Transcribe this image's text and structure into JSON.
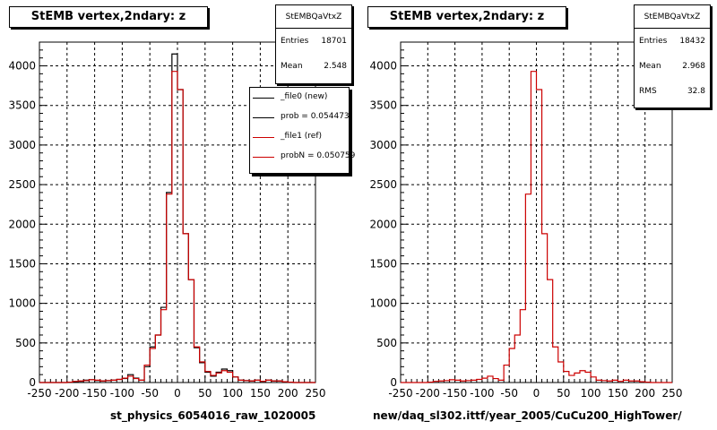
{
  "colors": {
    "file0": "#000000",
    "file1": "#cc0000",
    "grid": "#000000"
  },
  "chart_data": [
    {
      "type": "line",
      "title": "StEMB  vertex,2ndary: z",
      "xlabel": "st_physics_6054016_raw_1020005",
      "ylabel": "",
      "xlim": [
        -250,
        250
      ],
      "ylim": [
        0,
        4300
      ],
      "xticks": [
        -250,
        -200,
        -150,
        -100,
        -50,
        0,
        50,
        100,
        150,
        200,
        250
      ],
      "yticks": [
        0,
        500,
        1000,
        1500,
        2000,
        2500,
        3000,
        3500,
        4000
      ],
      "grid": true,
      "legend_position": "top-right",
      "stats": {
        "name": "StEMBQaVtxZ",
        "rows": [
          {
            "label": "Entries",
            "value": "18701"
          },
          {
            "label": "Mean",
            "value": "2.548"
          }
        ]
      },
      "legend": [
        {
          "label": "_file0 (new)",
          "color": "#000000"
        },
        {
          "label": "prob = 0.054473",
          "color": "#000000"
        },
        {
          "label": "_file1 (ref)",
          "color": "#cc0000"
        },
        {
          "label": "probN = 0.050759",
          "color": "#cc0000"
        }
      ],
      "bin_edges": [
        -250,
        -240,
        -230,
        -220,
        -210,
        -200,
        -190,
        -180,
        -170,
        -160,
        -150,
        -140,
        -130,
        -120,
        -110,
        -100,
        -90,
        -80,
        -70,
        -60,
        -50,
        -40,
        -30,
        -20,
        -10,
        0,
        10,
        20,
        30,
        40,
        50,
        60,
        70,
        80,
        90,
        100,
        110,
        120,
        130,
        140,
        150,
        160,
        170,
        180,
        190,
        200,
        210,
        220,
        230,
        240,
        250
      ],
      "series": [
        {
          "name": "_file0 (new)",
          "color": "#000000",
          "values": [
            0,
            0,
            0,
            0,
            0,
            5,
            10,
            15,
            30,
            35,
            25,
            20,
            25,
            30,
            40,
            50,
            100,
            55,
            30,
            200,
            450,
            600,
            950,
            2400,
            4150,
            3700,
            1880,
            1300,
            440,
            250,
            130,
            80,
            130,
            170,
            150,
            70,
            30,
            25,
            20,
            30,
            15,
            30,
            20,
            20,
            10,
            5,
            0,
            0,
            0,
            0
          ]
        },
        {
          "name": "_file1 (ref)",
          "color": "#cc0000",
          "values": [
            0,
            0,
            0,
            0,
            0,
            5,
            15,
            20,
            25,
            35,
            30,
            20,
            25,
            30,
            40,
            55,
            80,
            50,
            30,
            220,
            430,
            600,
            920,
            2380,
            3930,
            3700,
            1880,
            1300,
            450,
            260,
            140,
            90,
            120,
            150,
            130,
            70,
            30,
            25,
            20,
            30,
            15,
            30,
            20,
            20,
            10,
            5,
            0,
            0,
            0,
            0
          ]
        }
      ]
    },
    {
      "type": "line",
      "title": "StEMB  vertex,2ndary: z",
      "xlabel": "new/daq_sl302.ittf/year_2005/CuCu200_HighTower/",
      "ylabel": "",
      "xlim": [
        -250,
        250
      ],
      "ylim": [
        0,
        4300
      ],
      "xticks": [
        -250,
        -200,
        -150,
        -100,
        -50,
        0,
        50,
        100,
        150,
        200,
        250
      ],
      "yticks": [
        0,
        500,
        1000,
        1500,
        2000,
        2500,
        3000,
        3500,
        4000
      ],
      "grid": true,
      "stats": {
        "name": "StEMBQaVtxZ",
        "rows": [
          {
            "label": "Entries",
            "value": "18432"
          },
          {
            "label": "Mean",
            "value": "2.968"
          },
          {
            "label": "RMS",
            "value": "32.8"
          }
        ]
      },
      "bin_edges": [
        -250,
        -240,
        -230,
        -220,
        -210,
        -200,
        -190,
        -180,
        -170,
        -160,
        -150,
        -140,
        -130,
        -120,
        -110,
        -100,
        -90,
        -80,
        -70,
        -60,
        -50,
        -40,
        -30,
        -20,
        -10,
        0,
        10,
        20,
        30,
        40,
        50,
        60,
        70,
        80,
        90,
        100,
        110,
        120,
        130,
        140,
        150,
        160,
        170,
        180,
        190,
        200,
        210,
        220,
        230,
        240,
        250
      ],
      "series": [
        {
          "name": "_file1 (ref)",
          "color": "#cc0000",
          "values": [
            0,
            0,
            0,
            0,
            0,
            5,
            15,
            20,
            25,
            35,
            30,
            20,
            25,
            30,
            40,
            55,
            80,
            50,
            30,
            220,
            430,
            600,
            920,
            2380,
            3930,
            3700,
            1880,
            1300,
            450,
            260,
            140,
            90,
            120,
            150,
            130,
            70,
            30,
            25,
            20,
            30,
            15,
            30,
            20,
            20,
            10,
            5,
            0,
            0,
            0,
            0
          ]
        }
      ]
    }
  ]
}
